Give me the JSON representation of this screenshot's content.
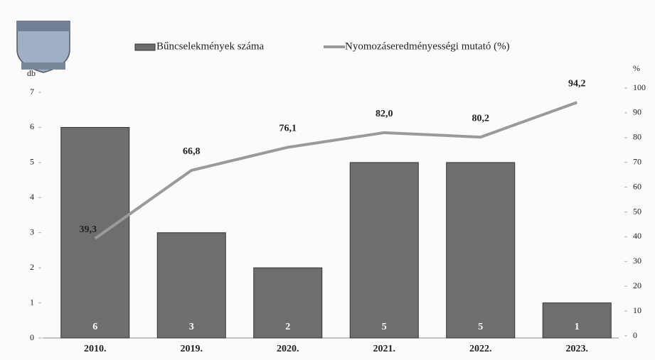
{
  "chart_data": {
    "type": "bar",
    "categories": [
      "2010.",
      "2019.",
      "2020.",
      "2021.",
      "2022.",
      "2023."
    ],
    "series": [
      {
        "name": "Bűncselekmények száma",
        "type": "bar",
        "axis": "y",
        "color": "#6e6e6e",
        "values": [
          6,
          3,
          2,
          5,
          5,
          1
        ]
      },
      {
        "name": "Nyomozáseredményességi mutató (%)",
        "type": "line",
        "axis": "y2",
        "color": "#9a9a9a",
        "values": [
          39.3,
          66.8,
          76.1,
          82.0,
          80.2,
          94.2
        ],
        "value_labels": [
          "39,3",
          "66,8",
          "76,1",
          "82,0",
          "80,2",
          "94,2"
        ]
      }
    ],
    "ylabel": "db",
    "y2label": "%",
    "ylim": [
      0,
      7
    ],
    "yticks": [
      0,
      1,
      2,
      3,
      4,
      5,
      6,
      7
    ],
    "y2lim": [
      0,
      100
    ],
    "y2ticks": [
      0,
      10,
      20,
      30,
      40,
      50,
      60,
      70,
      80,
      90,
      100
    ]
  }
}
